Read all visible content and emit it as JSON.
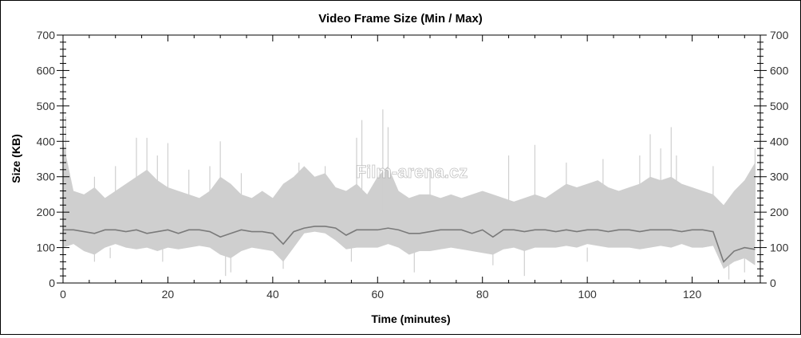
{
  "chart_data": {
    "type": "area",
    "title": "Video Frame Size (Min / Max)",
    "xlabel": "Time (minutes)",
    "ylabel": "Size (KB)",
    "xlim": [
      0,
      133
    ],
    "ylim": [
      0,
      700
    ],
    "x_ticks": [
      0,
      20,
      40,
      60,
      80,
      100,
      120
    ],
    "y_ticks": [
      0,
      100,
      200,
      300,
      400,
      500,
      600,
      700
    ],
    "x_minor_step": 5,
    "y_minor_step": 20,
    "grid": false,
    "right_axis_mirror": true,
    "watermark": "Film-arena.cz",
    "colors": {
      "max_band": "#cfcfcf",
      "min_line": "#7a7a7a",
      "axis": "#000000"
    },
    "x": [
      0,
      2,
      4,
      6,
      8,
      10,
      12,
      14,
      16,
      18,
      20,
      22,
      24,
      26,
      28,
      30,
      32,
      34,
      36,
      38,
      40,
      42,
      44,
      46,
      48,
      50,
      52,
      54,
      56,
      58,
      60,
      62,
      64,
      66,
      68,
      70,
      72,
      74,
      76,
      78,
      80,
      82,
      84,
      86,
      88,
      90,
      92,
      94,
      96,
      98,
      100,
      102,
      104,
      106,
      108,
      110,
      112,
      114,
      116,
      118,
      120,
      122,
      124,
      126,
      128,
      130,
      132
    ],
    "series": [
      {
        "key": "max_upper",
        "values": [
          400,
          260,
          250,
          270,
          240,
          260,
          280,
          300,
          320,
          290,
          270,
          260,
          250,
          240,
          260,
          300,
          280,
          250,
          240,
          260,
          240,
          280,
          300,
          330,
          300,
          310,
          270,
          260,
          280,
          250,
          300,
          330,
          260,
          240,
          250,
          250,
          240,
          250,
          240,
          250,
          260,
          250,
          240,
          230,
          240,
          250,
          240,
          260,
          280,
          270,
          280,
          290,
          270,
          260,
          270,
          280,
          300,
          290,
          300,
          280,
          270,
          260,
          250,
          220,
          260,
          290,
          340
        ]
      },
      {
        "key": "max_lower",
        "values": [
          100,
          110,
          90,
          80,
          100,
          110,
          100,
          95,
          100,
          90,
          100,
          95,
          100,
          105,
          100,
          80,
          70,
          90,
          100,
          95,
          90,
          60,
          100,
          140,
          145,
          140,
          120,
          95,
          100,
          100,
          100,
          110,
          100,
          80,
          90,
          90,
          95,
          100,
          95,
          90,
          85,
          80,
          95,
          100,
          90,
          100,
          100,
          100,
          105,
          100,
          110,
          105,
          100,
          100,
          100,
          95,
          100,
          105,
          100,
          110,
          100,
          100,
          105,
          40,
          60,
          70,
          50
        ]
      },
      {
        "key": "min",
        "values": [
          150,
          150,
          145,
          140,
          150,
          150,
          145,
          150,
          140,
          145,
          150,
          140,
          150,
          150,
          145,
          130,
          140,
          150,
          145,
          145,
          140,
          110,
          145,
          155,
          160,
          160,
          155,
          135,
          150,
          150,
          150,
          155,
          150,
          140,
          140,
          145,
          150,
          150,
          150,
          140,
          150,
          130,
          150,
          150,
          145,
          150,
          150,
          145,
          150,
          145,
          150,
          150,
          145,
          150,
          150,
          145,
          150,
          150,
          150,
          145,
          150,
          150,
          145,
          60,
          90,
          100,
          95
        ]
      }
    ],
    "spikes": [
      [
        0.5,
        470
      ],
      [
        6,
        300
      ],
      [
        10,
        330
      ],
      [
        14,
        410
      ],
      [
        16,
        410
      ],
      [
        18,
        360
      ],
      [
        20,
        395
      ],
      [
        24,
        320
      ],
      [
        28,
        330
      ],
      [
        30,
        400
      ],
      [
        34,
        310
      ],
      [
        45,
        340
      ],
      [
        50,
        330
      ],
      [
        56,
        410
      ],
      [
        57,
        460
      ],
      [
        61,
        490
      ],
      [
        62,
        440
      ],
      [
        70,
        320
      ],
      [
        85,
        360
      ],
      [
        90,
        390
      ],
      [
        96,
        340
      ],
      [
        103,
        350
      ],
      [
        110,
        360
      ],
      [
        112,
        420
      ],
      [
        114,
        380
      ],
      [
        116,
        440
      ],
      [
        117,
        360
      ],
      [
        124,
        330
      ],
      [
        132,
        380
      ]
    ],
    "dips": [
      [
        6,
        60
      ],
      [
        9,
        70
      ],
      [
        19,
        60
      ],
      [
        31,
        20
      ],
      [
        32,
        30
      ],
      [
        42,
        40
      ],
      [
        55,
        60
      ],
      [
        67,
        30
      ],
      [
        82,
        50
      ],
      [
        88,
        20
      ],
      [
        100,
        60
      ],
      [
        127,
        10
      ],
      [
        130,
        30
      ]
    ]
  }
}
